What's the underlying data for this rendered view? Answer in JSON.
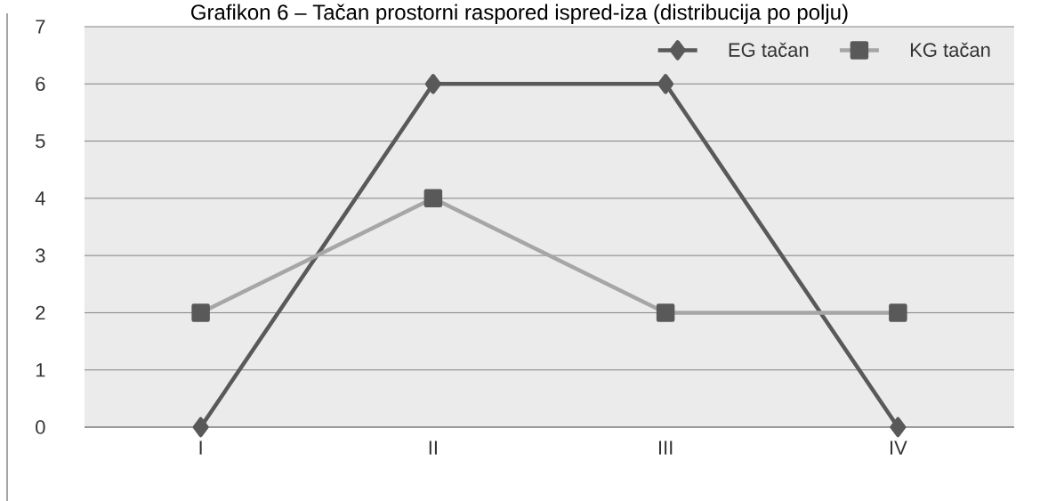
{
  "chart_data": {
    "type": "line",
    "title": "Grafikon 6 – Tačan prostorni raspored ispred-iza (distribucija po polju)",
    "categories": [
      "I",
      "II",
      "III",
      "IV"
    ],
    "series": [
      {
        "name": "EG tačan",
        "color": "#595959",
        "marker": "diamond",
        "values": [
          0,
          6,
          6,
          0
        ]
      },
      {
        "name": "KG tačan",
        "color": "#a6a6a6",
        "marker": "square",
        "values": [
          2,
          4,
          2,
          2
        ]
      }
    ],
    "ylim": [
      0,
      7
    ],
    "yticks": [
      0,
      1,
      2,
      3,
      4,
      5,
      6,
      7
    ],
    "grid": "y",
    "legend": "top right",
    "line_style": "solid"
  }
}
